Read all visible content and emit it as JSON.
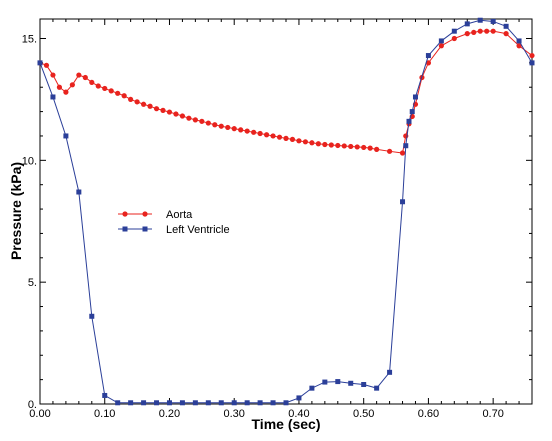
{
  "chart_data": {
    "type": "line",
    "title": "",
    "xlabel": "Time (sec)",
    "ylabel": "Pressure (kPa)",
    "xlim": [
      0,
      0.76
    ],
    "ylim": [
      0,
      15.8
    ],
    "x_ticks": [
      0,
      0.1,
      0.2,
      0.3,
      0.4,
      0.5,
      0.6,
      0.7
    ],
    "x_tick_labels": [
      "0.00",
      "0.10",
      "0.20",
      "0.30",
      "0.40",
      "0.50",
      "0.60",
      "0.70"
    ],
    "y_ticks": [
      0,
      5,
      10,
      15
    ],
    "y_tick_labels": [
      "0.",
      "5.",
      "10.",
      "15."
    ],
    "grid": false,
    "legend_position": "center-left",
    "series": [
      {
        "name": "Aorta",
        "color": "#e8231e",
        "marker": "circle",
        "x": [
          0.0,
          0.01,
          0.02,
          0.03,
          0.04,
          0.05,
          0.06,
          0.07,
          0.08,
          0.09,
          0.1,
          0.11,
          0.12,
          0.13,
          0.14,
          0.15,
          0.16,
          0.17,
          0.18,
          0.19,
          0.2,
          0.21,
          0.22,
          0.23,
          0.24,
          0.25,
          0.26,
          0.27,
          0.28,
          0.29,
          0.3,
          0.31,
          0.32,
          0.33,
          0.34,
          0.35,
          0.36,
          0.37,
          0.38,
          0.39,
          0.4,
          0.41,
          0.42,
          0.43,
          0.44,
          0.45,
          0.46,
          0.47,
          0.48,
          0.49,
          0.5,
          0.51,
          0.52,
          0.54,
          0.56,
          0.565,
          0.57,
          0.575,
          0.58,
          0.59,
          0.6,
          0.62,
          0.64,
          0.66,
          0.67,
          0.68,
          0.69,
          0.7,
          0.72,
          0.74,
          0.76
        ],
        "y": [
          14.0,
          13.9,
          13.5,
          13.0,
          12.8,
          13.1,
          13.5,
          13.4,
          13.2,
          13.05,
          12.95,
          12.85,
          12.75,
          12.65,
          12.5,
          12.4,
          12.3,
          12.22,
          12.12,
          12.05,
          11.98,
          11.9,
          11.82,
          11.73,
          11.66,
          11.6,
          11.53,
          11.46,
          11.4,
          11.35,
          11.3,
          11.25,
          11.2,
          11.15,
          11.1,
          11.05,
          11.0,
          10.95,
          10.9,
          10.86,
          10.8,
          10.76,
          10.72,
          10.68,
          10.65,
          10.63,
          10.61,
          10.59,
          10.57,
          10.55,
          10.53,
          10.5,
          10.45,
          10.37,
          10.3,
          11.0,
          11.5,
          11.8,
          12.3,
          13.4,
          14.0,
          14.7,
          15.0,
          15.2,
          15.25,
          15.3,
          15.3,
          15.3,
          15.2,
          14.7,
          14.3
        ]
      },
      {
        "name": "Left Ventricle",
        "color": "#2b3f99",
        "marker": "square",
        "x": [
          0.0,
          0.02,
          0.04,
          0.06,
          0.08,
          0.1,
          0.12,
          0.14,
          0.16,
          0.18,
          0.2,
          0.22,
          0.24,
          0.26,
          0.28,
          0.3,
          0.32,
          0.34,
          0.36,
          0.38,
          0.4,
          0.42,
          0.44,
          0.46,
          0.48,
          0.5,
          0.52,
          0.54,
          0.56,
          0.565,
          0.57,
          0.575,
          0.58,
          0.6,
          0.62,
          0.64,
          0.66,
          0.68,
          0.7,
          0.72,
          0.74,
          0.76
        ],
        "y": [
          14.0,
          12.6,
          11.0,
          8.7,
          3.6,
          0.35,
          0.05,
          0.05,
          0.05,
          0.05,
          0.05,
          0.05,
          0.05,
          0.05,
          0.05,
          0.05,
          0.05,
          0.05,
          0.05,
          0.05,
          0.25,
          0.65,
          0.9,
          0.92,
          0.85,
          0.8,
          0.65,
          1.3,
          8.3,
          10.6,
          11.6,
          12.0,
          12.6,
          14.3,
          14.9,
          15.3,
          15.6,
          15.75,
          15.7,
          15.5,
          14.9,
          14.0
        ]
      }
    ]
  }
}
